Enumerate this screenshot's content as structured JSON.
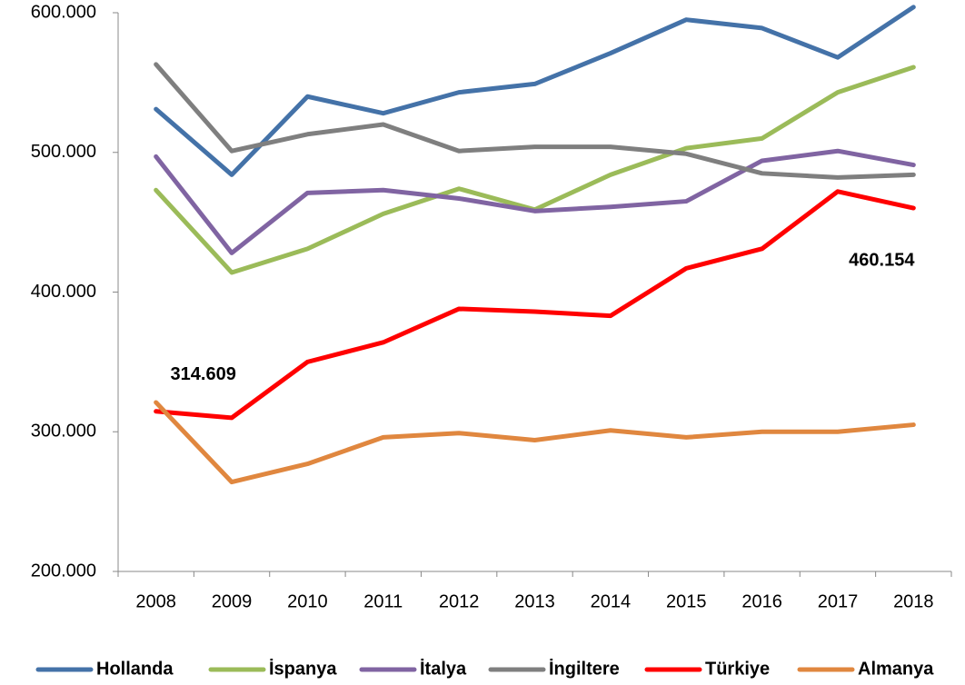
{
  "chart_data": {
    "type": "line",
    "categories": [
      "2008",
      "2009",
      "2010",
      "2011",
      "2012",
      "2013",
      "2014",
      "2015",
      "2016",
      "2017",
      "2018"
    ],
    "series": [
      {
        "name": "Hollanda",
        "color": "#4472a8",
        "values": [
          531000,
          484000,
          540000,
          528000,
          543000,
          549000,
          571000,
          595000,
          589000,
          568000,
          604000
        ]
      },
      {
        "name": "İspanya",
        "color": "#9bbb59",
        "values": [
          473000,
          414000,
          431000,
          456000,
          474000,
          459000,
          484000,
          503000,
          510000,
          543000,
          561000
        ]
      },
      {
        "name": "İtalya",
        "color": "#8064a2",
        "values": [
          497000,
          428000,
          471000,
          473000,
          467000,
          458000,
          461000,
          465000,
          494000,
          501000,
          491000
        ]
      },
      {
        "name": "İngiltere",
        "color": "#7f7f7f",
        "values": [
          563000,
          501000,
          513000,
          520000,
          501000,
          504000,
          504000,
          499000,
          485000,
          482000,
          484000
        ]
      },
      {
        "name": "Türkiye",
        "color": "#ff0000",
        "values": [
          314609,
          310000,
          350000,
          364000,
          388000,
          386000,
          383000,
          417000,
          431000,
          472000,
          460154
        ],
        "value_labels": [
          "314.609",
          null,
          null,
          null,
          null,
          null,
          null,
          null,
          null,
          null,
          "460.154"
        ]
      },
      {
        "name": "Almanya",
        "color": "#e0873f",
        "values": [
          321000,
          264000,
          277000,
          296000,
          299000,
          294000,
          301000,
          296000,
          300000,
          300000,
          305000
        ]
      }
    ],
    "ylim": [
      200000,
      600000
    ],
    "yticks": [
      {
        "value": 200000,
        "label": "200.000"
      },
      {
        "value": 300000,
        "label": "300.000"
      },
      {
        "value": 400000,
        "label": "400.000"
      },
      {
        "value": 500000,
        "label": "500.000"
      },
      {
        "value": 600000,
        "label": "600.000"
      }
    ],
    "legend": "bottom"
  }
}
